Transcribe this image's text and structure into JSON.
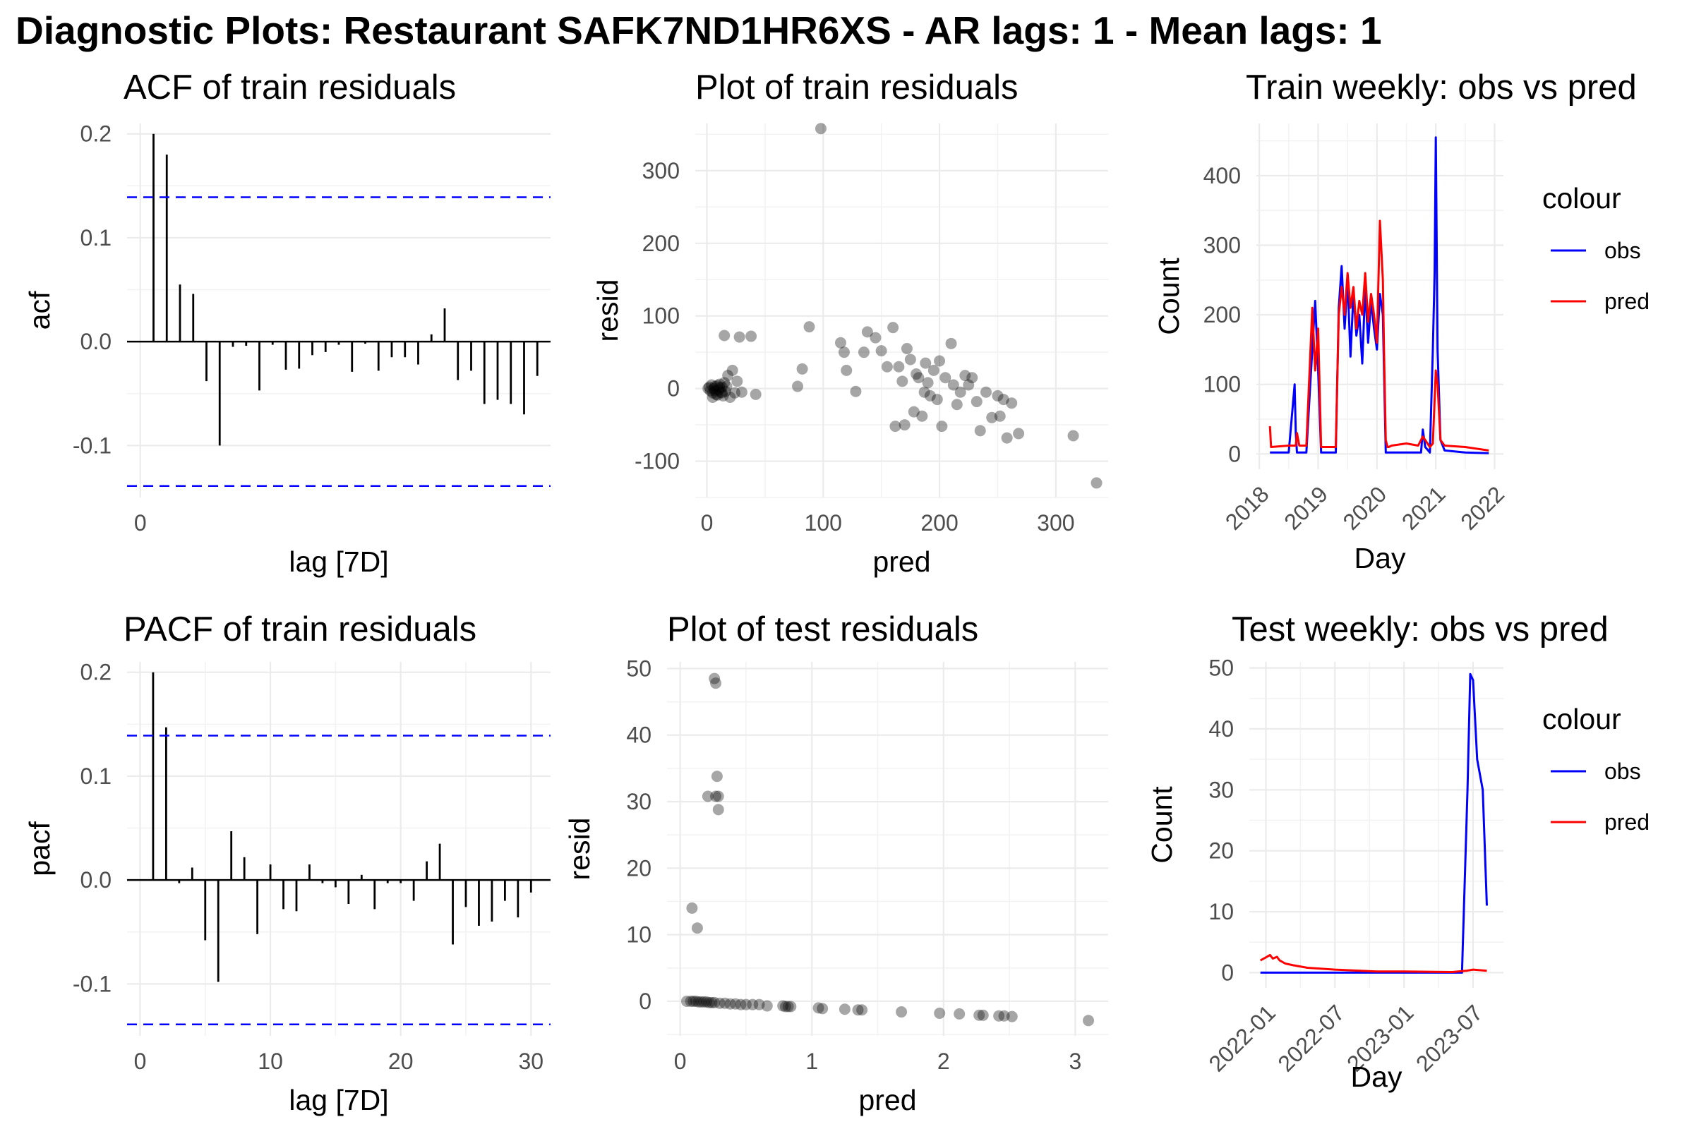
{
  "title": "Diagnostic Plots: Restaurant SAFK7ND1HR6XS - AR lags: 1 - Mean lags: 1",
  "chart_data": [
    {
      "id": "acf",
      "type": "bar",
      "title": "ACF of train residuals",
      "xlabel": "lag [7D]",
      "ylabel": "acf",
      "xlim": [
        -1,
        31
      ],
      "ylim": [
        -0.15,
        0.21
      ],
      "xticks": [
        0
      ],
      "yticks": [
        -0.1,
        0.0,
        0.1,
        0.2
      ],
      "ytick_labels": [
        "-0.1",
        "0.0",
        "0.1",
        "0.2"
      ],
      "confidence_band": 0.139,
      "lags": [
        1,
        2,
        3,
        4,
        5,
        6,
        7,
        8,
        9,
        10,
        11,
        12,
        13,
        14,
        15,
        16,
        17,
        18,
        19,
        20,
        21,
        22,
        23,
        24,
        25,
        26,
        27,
        28,
        29,
        30
      ],
      "values": [
        0.2,
        0.18,
        0.055,
        0.046,
        -0.038,
        -0.1,
        -0.005,
        -0.004,
        -0.047,
        -0.003,
        -0.027,
        -0.026,
        -0.013,
        -0.01,
        -0.003,
        -0.029,
        -0.002,
        -0.028,
        -0.015,
        -0.015,
        -0.022,
        0.007,
        0.032,
        -0.037,
        -0.028,
        -0.06,
        -0.056,
        -0.06,
        -0.07,
        -0.033
      ],
      "grid": true
    },
    {
      "id": "train_resid",
      "type": "scatter",
      "title": "Plot of train residuals",
      "xlabel": "pred",
      "ylabel": "resid",
      "xlim": [
        -10,
        345
      ],
      "ylim": [
        -150,
        365
      ],
      "xticks": [
        0,
        100,
        200,
        300
      ],
      "yticks": [
        -100,
        0,
        100,
        200,
        300
      ],
      "points": [
        [
          98,
          358
        ],
        [
          15,
          73
        ],
        [
          28,
          71
        ],
        [
          38,
          72
        ],
        [
          88,
          85
        ],
        [
          42,
          -8
        ],
        [
          82,
          27
        ],
        [
          78,
          3
        ],
        [
          115,
          63
        ],
        [
          118,
          50
        ],
        [
          120,
          25
        ],
        [
          128,
          -4
        ],
        [
          138,
          78
        ],
        [
          145,
          70
        ],
        [
          150,
          52
        ],
        [
          155,
          30
        ],
        [
          160,
          84
        ],
        [
          162,
          -52
        ],
        [
          165,
          30
        ],
        [
          170,
          -50
        ],
        [
          172,
          55
        ],
        [
          175,
          40
        ],
        [
          178,
          -32
        ],
        [
          180,
          20
        ],
        [
          182,
          15
        ],
        [
          185,
          -38
        ],
        [
          188,
          35
        ],
        [
          190,
          8
        ],
        [
          192,
          -10
        ],
        [
          195,
          25
        ],
        [
          198,
          -15
        ],
        [
          200,
          38
        ],
        [
          202,
          -52
        ],
        [
          205,
          15
        ],
        [
          210,
          62
        ],
        [
          212,
          5
        ],
        [
          215,
          -22
        ],
        [
          218,
          -5
        ],
        [
          222,
          18
        ],
        [
          225,
          5
        ],
        [
          228,
          15
        ],
        [
          232,
          -18
        ],
        [
          235,
          -58
        ],
        [
          240,
          -5
        ],
        [
          245,
          -40
        ],
        [
          250,
          -10
        ],
        [
          252,
          -38
        ],
        [
          255,
          -15
        ],
        [
          258,
          -68
        ],
        [
          262,
          -20
        ],
        [
          268,
          -62
        ],
        [
          315,
          -65
        ],
        [
          335,
          -130
        ],
        [
          135,
          50
        ],
        [
          168,
          10
        ],
        [
          187,
          -5
        ],
        [
          2,
          2
        ],
        [
          3,
          -3
        ],
        [
          4,
          5
        ],
        [
          5,
          -6
        ],
        [
          6,
          0
        ],
        [
          7,
          3
        ],
        [
          8,
          -8
        ],
        [
          9,
          4
        ],
        [
          10,
          -2
        ],
        [
          11,
          6
        ],
        [
          12,
          -5
        ],
        [
          13,
          2
        ],
        [
          14,
          -10
        ],
        [
          15,
          8
        ],
        [
          16,
          -4
        ],
        [
          18,
          18
        ],
        [
          20,
          -12
        ],
        [
          22,
          25
        ],
        [
          24,
          -6
        ],
        [
          26,
          10
        ],
        [
          30,
          -5
        ],
        [
          1,
          0
        ],
        [
          5,
          -12
        ],
        [
          7,
          -3
        ],
        [
          9,
          -9
        ],
        [
          11,
          1
        ],
        [
          13,
          -6
        ],
        [
          17,
          3
        ]
      ]
    },
    {
      "id": "train_weekly",
      "type": "line",
      "title": "Train weekly: obs vs pred",
      "xlabel": "Day",
      "ylabel": "Count",
      "xlim": [
        2017.95,
        2022.15
      ],
      "ylim": [
        -22,
        475
      ],
      "xticks": [
        2018,
        2019,
        2020,
        2021,
        2022
      ],
      "xtick_labels": [
        "2018",
        "2019",
        "2020",
        "2021",
        "2022"
      ],
      "yticks": [
        0,
        100,
        200,
        300,
        400
      ],
      "legend_title": "colour",
      "legend_position": "right",
      "series": [
        {
          "name": "obs",
          "color": "#0000ff",
          "x": [
            2018.18,
            2018.2,
            2018.5,
            2018.6,
            2018.62,
            2018.64,
            2018.8,
            2018.9,
            2018.95,
            2019.0,
            2019.05,
            2019.08,
            2019.15,
            2019.3,
            2019.35,
            2019.4,
            2019.45,
            2019.5,
            2019.55,
            2019.6,
            2019.65,
            2019.7,
            2019.75,
            2019.8,
            2019.85,
            2019.9,
            2019.95,
            2020.0,
            2020.05,
            2020.1,
            2020.12,
            2020.15,
            2020.18,
            2020.2,
            2020.25,
            2020.5,
            2020.7,
            2020.75,
            2020.78,
            2020.82,
            2020.9,
            2020.95,
            2020.98,
            2021.0,
            2021.03,
            2021.08,
            2021.15,
            2021.5,
            2021.9
          ],
          "y": [
            2,
            2,
            2,
            100,
            30,
            2,
            2,
            150,
            220,
            120,
            2,
            2,
            2,
            2,
            210,
            270,
            180,
            250,
            140,
            230,
            170,
            200,
            130,
            240,
            160,
            220,
            180,
            150,
            230,
            200,
            120,
            2,
            2,
            2,
            2,
            2,
            2,
            2,
            35,
            10,
            2,
            150,
            260,
            455,
            150,
            20,
            5,
            2,
            1
          ]
        },
        {
          "name": "pred",
          "color": "#ff0000",
          "x": [
            2018.18,
            2018.2,
            2018.5,
            2018.62,
            2018.64,
            2018.68,
            2018.8,
            2018.9,
            2018.95,
            2019.0,
            2019.05,
            2019.08,
            2019.15,
            2019.3,
            2019.35,
            2019.4,
            2019.45,
            2019.5,
            2019.55,
            2019.6,
            2019.65,
            2019.7,
            2019.75,
            2019.8,
            2019.85,
            2019.9,
            2019.95,
            2020.0,
            2020.05,
            2020.1,
            2020.12,
            2020.15,
            2020.18,
            2020.2,
            2020.25,
            2020.5,
            2020.7,
            2020.78,
            2020.82,
            2020.9,
            2020.95,
            2021.0,
            2021.03,
            2021.08,
            2021.15,
            2021.5,
            2021.9
          ],
          "y": [
            40,
            10,
            12,
            12,
            30,
            12,
            12,
            210,
            120,
            180,
            10,
            10,
            10,
            10,
            200,
            240,
            200,
            260,
            210,
            240,
            180,
            220,
            200,
            260,
            190,
            230,
            200,
            160,
            335,
            250,
            150,
            20,
            10,
            10,
            12,
            15,
            12,
            25,
            20,
            10,
            15,
            120,
            100,
            20,
            12,
            10,
            5
          ]
        }
      ]
    },
    {
      "id": "pacf",
      "type": "bar",
      "title": "PACF of train residuals",
      "xlabel": "lag [7D]",
      "ylabel": "pacf",
      "xlim": [
        -1,
        31.5
      ],
      "ylim": [
        -0.15,
        0.21
      ],
      "xticks": [
        0,
        10,
        20,
        30
      ],
      "yticks": [
        -0.1,
        0.0,
        0.1,
        0.2
      ],
      "ytick_labels": [
        "-0.1",
        "0.0",
        "0.1",
        "0.2"
      ],
      "confidence_band": 0.139,
      "lags": [
        1,
        2,
        3,
        4,
        5,
        6,
        7,
        8,
        9,
        10,
        11,
        12,
        13,
        14,
        15,
        16,
        17,
        18,
        19,
        20,
        21,
        22,
        23,
        24,
        25,
        26,
        27,
        28,
        29,
        30
      ],
      "values": [
        0.2,
        0.147,
        -0.003,
        0.012,
        -0.058,
        -0.098,
        0.047,
        0.022,
        -0.052,
        0.015,
        -0.028,
        -0.03,
        0.015,
        -0.003,
        -0.007,
        -0.023,
        0.005,
        -0.028,
        -0.003,
        -0.003,
        -0.02,
        0.018,
        0.035,
        -0.062,
        -0.026,
        -0.044,
        -0.04,
        -0.02,
        -0.036,
        -0.012
      ]
    },
    {
      "id": "test_resid",
      "type": "scatter",
      "title": "Plot of test residuals",
      "xlabel": "pred",
      "ylabel": "resid",
      "xlim": [
        -0.1,
        3.25
      ],
      "ylim": [
        -5.2,
        51
      ],
      "xticks": [
        0,
        1,
        2,
        3
      ],
      "yticks": [
        0,
        10,
        20,
        30,
        40,
        50
      ],
      "points": [
        [
          0.26,
          48.5
        ],
        [
          0.27,
          47.8
        ],
        [
          0.28,
          33.8
        ],
        [
          0.21,
          30.8
        ],
        [
          0.27,
          30.8
        ],
        [
          0.29,
          30.8
        ],
        [
          0.29,
          28.8
        ],
        [
          0.09,
          14
        ],
        [
          0.13,
          11
        ],
        [
          0.05,
          0
        ],
        [
          0.08,
          0
        ],
        [
          0.1,
          0
        ],
        [
          0.12,
          0
        ],
        [
          0.14,
          -0.1
        ],
        [
          0.16,
          -0.1
        ],
        [
          0.18,
          -0.1
        ],
        [
          0.2,
          -0.1
        ],
        [
          0.22,
          -0.2
        ],
        [
          0.24,
          -0.2
        ],
        [
          0.26,
          -0.2
        ],
        [
          0.3,
          -0.3
        ],
        [
          0.34,
          -0.3
        ],
        [
          0.38,
          -0.4
        ],
        [
          0.42,
          -0.4
        ],
        [
          0.46,
          -0.5
        ],
        [
          0.5,
          -0.5
        ],
        [
          0.55,
          -0.5
        ],
        [
          0.6,
          -0.5
        ],
        [
          0.66,
          -0.7
        ],
        [
          0.78,
          -0.7
        ],
        [
          0.8,
          -0.8
        ],
        [
          0.82,
          -0.8
        ],
        [
          0.84,
          -0.8
        ],
        [
          1.05,
          -1
        ],
        [
          1.08,
          -1.1
        ],
        [
          1.25,
          -1.2
        ],
        [
          1.35,
          -1.3
        ],
        [
          1.38,
          -1.3
        ],
        [
          1.68,
          -1.6
        ],
        [
          1.97,
          -1.8
        ],
        [
          2.12,
          -1.9
        ],
        [
          2.27,
          -2.1
        ],
        [
          2.3,
          -2.1
        ],
        [
          2.42,
          -2.2
        ],
        [
          2.46,
          -2.2
        ],
        [
          2.52,
          -2.3
        ],
        [
          3.1,
          -2.9
        ]
      ]
    },
    {
      "id": "test_weekly",
      "type": "line",
      "title": "Test weekly: obs vs pred",
      "xlabel": "Day",
      "ylabel": "Count",
      "xlim": [
        2021.88,
        2023.72
      ],
      "ylim": [
        -2.5,
        51
      ],
      "xticks": [
        2022.0,
        2022.5,
        2023.0,
        2023.5
      ],
      "xtick_labels": [
        "2022-01",
        "2022-07",
        "2023-01",
        "2023-07"
      ],
      "yticks": [
        0,
        10,
        20,
        30,
        40,
        50
      ],
      "legend_title": "colour",
      "legend_position": "right",
      "series": [
        {
          "name": "obs",
          "color": "#0000ff",
          "x": [
            2021.96,
            2023.35,
            2023.42,
            2023.46,
            2023.48,
            2023.5,
            2023.53,
            2023.57,
            2023.6
          ],
          "y": [
            0,
            0,
            0,
            30,
            49,
            48,
            35,
            30,
            11
          ]
        },
        {
          "name": "pred",
          "color": "#ff0000",
          "x": [
            2021.96,
            2022.0,
            2022.03,
            2022.05,
            2022.08,
            2022.1,
            2022.14,
            2022.2,
            2022.3,
            2022.5,
            2022.8,
            2023.0,
            2023.35,
            2023.45,
            2023.5,
            2023.6
          ],
          "y": [
            2,
            2.5,
            2.9,
            2.3,
            2.6,
            2,
            1.5,
            1.2,
            0.8,
            0.5,
            0.2,
            0.2,
            0.1,
            0.3,
            0.5,
            0.3
          ]
        }
      ]
    }
  ]
}
